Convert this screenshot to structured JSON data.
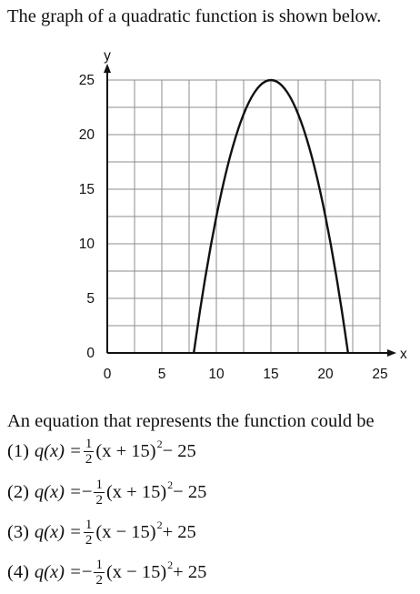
{
  "question": {
    "intro": "The graph of a quadratic function is shown below.",
    "prompt": "An equation that represents the function could be",
    "choices": [
      {
        "number": "(1)",
        "lhs": "q(x) = ",
        "sign": "",
        "frac_num": "1",
        "frac_den": "2",
        "body": "(x + 15)",
        "exp": "2",
        "tail": " − 25"
      },
      {
        "number": "(2)",
        "lhs": "q(x) = ",
        "sign": "−",
        "frac_num": "1",
        "frac_den": "2",
        "body": "(x + 15)",
        "exp": "2",
        "tail": " − 25"
      },
      {
        "number": "(3)",
        "lhs": "q(x) = ",
        "sign": "",
        "frac_num": "1",
        "frac_den": "2",
        "body": "(x − 15)",
        "exp": "2",
        "tail": " + 25"
      },
      {
        "number": "(4)",
        "lhs": "q(x) = ",
        "sign": "−",
        "frac_num": "1",
        "frac_den": "2",
        "body": "(x − 15)",
        "exp": "2",
        "tail": " + 25"
      }
    ]
  },
  "chart_data": {
    "type": "line",
    "title": "",
    "xlabel": "x",
    "ylabel": "y",
    "xlim": [
      0,
      25
    ],
    "ylim": [
      0,
      25
    ],
    "grid": true,
    "grid_step": 2.5,
    "x_ticks": [
      0,
      5,
      10,
      15,
      20,
      25
    ],
    "y_ticks": [
      0,
      5,
      10,
      15,
      20,
      25
    ],
    "x_tick_labels": [
      "0",
      "5",
      "10",
      "15",
      "20",
      "25"
    ],
    "y_tick_labels": [
      "0",
      "5",
      "10",
      "15",
      "20",
      "25"
    ],
    "series": [
      {
        "function": "y = -0.5 * (x - 15)^2 + 25",
        "x": [
          7.93,
          8.5,
          9,
          9.5,
          10,
          10.5,
          11,
          11.5,
          12,
          12.5,
          13,
          13.5,
          14,
          14.5,
          15,
          15.5,
          16,
          16.5,
          17,
          17.5,
          18,
          18.5,
          19,
          19.5,
          20,
          20.5,
          21,
          21.5,
          22.07
        ],
        "y": [
          0,
          3.875,
          7,
          9.875,
          12.5,
          14.875,
          17,
          18.875,
          20.5,
          21.875,
          23,
          23.875,
          24.5,
          24.875,
          25,
          24.875,
          24.5,
          23.875,
          23,
          21.875,
          20.5,
          18.875,
          17,
          14.875,
          12.5,
          9.875,
          7,
          3.875,
          0
        ],
        "color": "#111111"
      }
    ]
  }
}
